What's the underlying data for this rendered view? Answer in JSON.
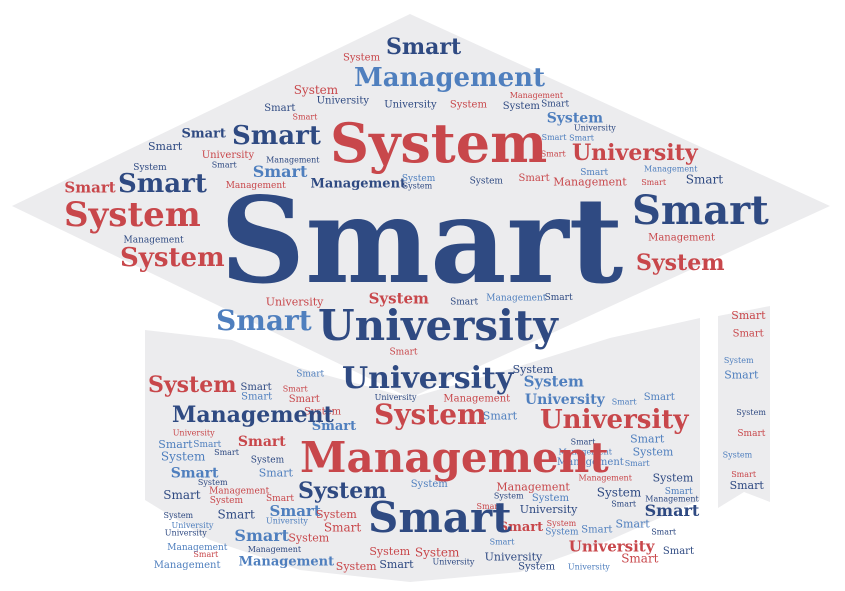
{
  "colors": {
    "background": "#ffffff",
    "shape_fill": "#ececee",
    "navy": "#2f4a82",
    "red": "#c8474b",
    "blue": "#4f7fbe"
  },
  "words": {
    "smart": "Smart",
    "system": "System",
    "university": "University",
    "management": "Management"
  },
  "palette_order": [
    "navy",
    "red",
    "blue"
  ]
}
